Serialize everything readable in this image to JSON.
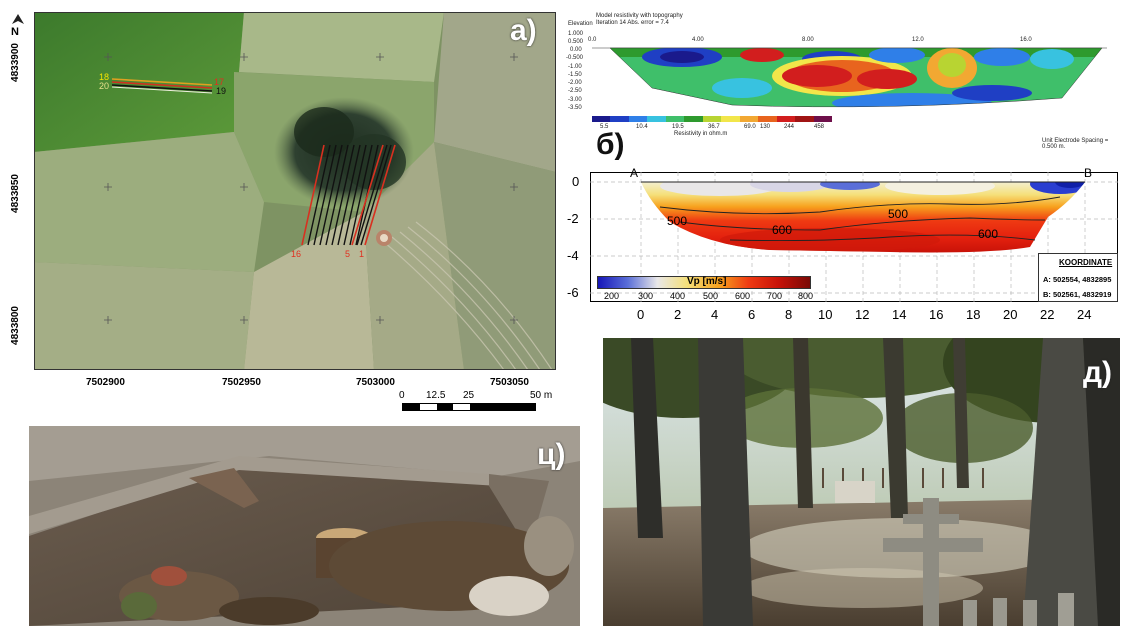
{
  "panel_a": {
    "letter": "a)",
    "north": "N",
    "y_ticks": [
      "4833900",
      "4833850",
      "4833800"
    ],
    "x_ticks": [
      "7502900",
      "7502950",
      "7503000",
      "7503050"
    ],
    "line_labels": {
      "l18": "18",
      "l20": "20",
      "l17": "17",
      "l19": "19",
      "l16": "16",
      "l5": "5",
      "l1": "1"
    },
    "scalebar": {
      "labels": [
        "0",
        "12.5",
        "25",
        "50 m"
      ]
    }
  },
  "panel_b_top": {
    "elevation_label": "Elevation",
    "title_lines": [
      "Model resistivity with topography",
      "Iteration 14 Abs. error = 7.4"
    ],
    "x_ticks": [
      "0.0",
      "4.00",
      "8.00",
      "12.0",
      "16.0"
    ],
    "y_ticks": [
      "1.000",
      "0.500",
      "0.00",
      "-0.500",
      "-1.00",
      "-1.50",
      "-2.00",
      "-2.50",
      "-3.00",
      "-3.50"
    ],
    "legend_values": [
      "5.5",
      "10.4",
      "19.5",
      "36.7",
      "69.0",
      "130",
      "244",
      "458"
    ],
    "legend_colors": [
      "#1a1a8c",
      "#1f3fc4",
      "#2f7fe8",
      "#38c2e0",
      "#3fbf6a",
      "#2e9a2e",
      "#b8d432",
      "#f2e64a",
      "#f2a832",
      "#e8641e",
      "#d21e1e",
      "#a01414",
      "#6e0f4a"
    ],
    "legend_caption": "Resistivity in ohm.m",
    "spacing_note": "Unit Electrode Spacing = 0.500 m."
  },
  "panel_b": {
    "letter": "б)",
    "point_a": "A",
    "point_b": "B",
    "contour_labels": [
      "500",
      "500",
      "600",
      "600"
    ],
    "y_ticks": [
      "0",
      "-2",
      "-4",
      "-6"
    ],
    "x_ticks": [
      "0",
      "2",
      "4",
      "6",
      "8",
      "10",
      "12",
      "14",
      "16",
      "18",
      "20",
      "22",
      "24"
    ],
    "colorbar": {
      "title": "Vp [m/s]",
      "ticks": [
        "200",
        "300",
        "400",
        "500",
        "600",
        "700",
        "800"
      ]
    },
    "koordinate": {
      "title": "KOORDINATE",
      "a": "A: 502554, 4832895",
      "b": "B: 502561, 4832919"
    }
  },
  "panel_c": {
    "letter": "ц)"
  },
  "panel_d": {
    "letter": "д)"
  }
}
